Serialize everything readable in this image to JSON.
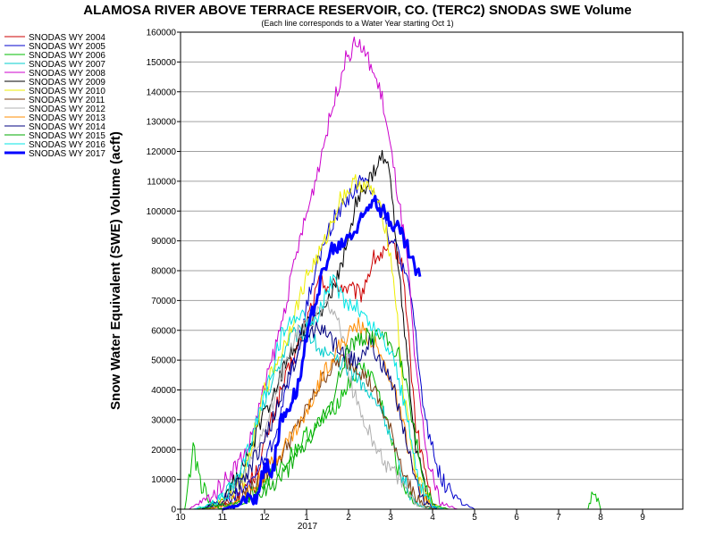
{
  "chart_data": {
    "type": "line",
    "title": "ALAMOSA RIVER ABOVE TERRACE RESERVOIR, CO. (TERC2) SNODAS SWE Volume",
    "subtitle": "(Each line corresponds to a Water Year starting Oct 1)",
    "ylabel": "Snow Water Equivalent (SWE) Volume (acft)",
    "xlabel": "",
    "x_tick_labels": [
      "10",
      "11",
      "12",
      "1",
      "2",
      "3",
      "4",
      "5",
      "6",
      "7",
      "8",
      "9"
    ],
    "x_year_label": "2017",
    "x_range_months": [
      0,
      12
    ],
    "ylim": [
      0,
      160000
    ],
    "y_ticks": [
      0,
      10000,
      20000,
      30000,
      40000,
      50000,
      60000,
      70000,
      80000,
      90000,
      100000,
      110000,
      120000,
      130000,
      140000,
      150000,
      160000
    ],
    "grid": true,
    "legend_position": "left",
    "series": [
      {
        "name": "SNODAS WY 2004",
        "color": "#cc0000",
        "width": 1,
        "x": [
          0.6,
          1.2,
          1.8,
          2.3,
          2.8,
          3.3,
          3.8,
          4.3,
          4.6,
          4.9,
          5.1,
          5.3,
          5.6,
          6.0,
          6.3
        ],
        "y": [
          0,
          3000,
          12000,
          36000,
          55000,
          76000,
          75000,
          72000,
          84000,
          86000,
          88000,
          80000,
          28000,
          1000,
          0
        ]
      },
      {
        "name": "SNODAS WY 2005",
        "color": "#0000cc",
        "width": 1,
        "x": [
          0.4,
          1.0,
          1.6,
          2.2,
          2.8,
          3.2,
          3.6,
          4.0,
          4.3,
          4.6,
          4.8,
          5.0,
          5.2,
          5.5,
          5.8,
          6.2,
          6.7,
          7.0
        ],
        "y": [
          0,
          2000,
          7000,
          22000,
          55000,
          80000,
          96000,
          105000,
          110000,
          108000,
          100000,
          90000,
          86000,
          70000,
          32000,
          10000,
          2000,
          0
        ]
      },
      {
        "name": "SNODAS WY 2006",
        "color": "#00bb00",
        "width": 1,
        "x": [
          0.1,
          0.3,
          0.5,
          0.7,
          1.0,
          1.5,
          2.0,
          2.5,
          3.0,
          3.4,
          3.7,
          4.0,
          4.3,
          4.6,
          4.9,
          5.2,
          5.5,
          5.8,
          6.0,
          9.7,
          9.85,
          10.0
        ],
        "y": [
          0,
          20000,
          8000,
          2000,
          0,
          3000,
          9000,
          16000,
          25000,
          30000,
          35000,
          42000,
          48000,
          44000,
          30000,
          12000,
          3000,
          500,
          0,
          0,
          7000,
          0
        ]
      },
      {
        "name": "SNODAS WY 2007",
        "color": "#00cccc",
        "width": 1,
        "x": [
          0.5,
          1.0,
          1.5,
          2.0,
          2.6,
          3.0,
          3.3,
          3.6,
          3.9,
          4.2,
          4.5,
          4.8,
          5.0,
          5.3,
          5.6,
          6.0,
          6.3
        ],
        "y": [
          0,
          4000,
          12000,
          36000,
          58000,
          60000,
          54000,
          50000,
          48000,
          45000,
          38000,
          34000,
          24000,
          10000,
          2000,
          300,
          0
        ]
      },
      {
        "name": "SNODAS WY 2008",
        "color": "#cc00cc",
        "width": 1,
        "x": [
          0.2,
          0.8,
          1.6,
          2.1,
          2.4,
          2.8,
          3.1,
          3.5,
          3.9,
          4.2,
          4.5,
          4.8,
          5.1,
          5.4,
          5.6,
          5.9,
          6.2,
          6.6
        ],
        "y": [
          0,
          5000,
          20000,
          46000,
          62000,
          88000,
          104000,
          128000,
          150000,
          157000,
          150000,
          138000,
          112000,
          84000,
          46000,
          15000,
          2000,
          0
        ]
      },
      {
        "name": "SNODAS WY 2009",
        "color": "#000000",
        "width": 1,
        "x": [
          0.5,
          1.0,
          1.5,
          2.0,
          2.6,
          3.0,
          3.4,
          3.8,
          4.2,
          4.5,
          4.8,
          5.0,
          5.3,
          5.6,
          5.9,
          6.2
        ],
        "y": [
          0,
          3000,
          14000,
          32000,
          52000,
          62000,
          66000,
          80000,
          104000,
          110000,
          118000,
          112000,
          64000,
          20000,
          3000,
          0
        ]
      },
      {
        "name": "SNODAS WY 2010",
        "color": "#eeee00",
        "width": 1,
        "x": [
          0.6,
          1.0,
          1.5,
          2.0,
          2.5,
          3.0,
          3.4,
          3.8,
          4.2,
          4.6,
          4.9,
          5.1,
          5.3,
          5.6,
          6.0,
          6.3
        ],
        "y": [
          0,
          3000,
          10000,
          40000,
          56000,
          78000,
          88000,
          104000,
          110000,
          106000,
          94000,
          74000,
          40000,
          12000,
          1500,
          0
        ]
      },
      {
        "name": "SNODAS WY 2011",
        "color": "#7a3b10",
        "width": 1,
        "x": [
          0.6,
          1.2,
          1.8,
          2.4,
          3.0,
          3.4,
          3.8,
          4.2,
          4.6,
          5.0,
          5.4,
          5.8,
          6.1
        ],
        "y": [
          0,
          2000,
          8000,
          18000,
          33000,
          44000,
          50000,
          48000,
          40000,
          26000,
          9000,
          1000,
          0
        ]
      },
      {
        "name": "SNODAS WY 2012",
        "color": "#b0b0b0",
        "width": 1,
        "x": [
          0.4,
          1.0,
          1.6,
          2.2,
          2.8,
          3.2,
          3.5,
          3.8,
          4.1,
          4.4,
          4.7,
          5.0,
          5.3,
          5.6,
          5.9
        ],
        "y": [
          0,
          2000,
          12000,
          36000,
          60000,
          64000,
          70000,
          62000,
          40000,
          28000,
          20000,
          13000,
          8000,
          2000,
          0
        ]
      },
      {
        "name": "SNODAS WY 2013",
        "color": "#ff8c00",
        "width": 1,
        "x": [
          0.6,
          1.2,
          1.8,
          2.4,
          3.0,
          3.4,
          3.8,
          4.2,
          4.6,
          5.0,
          5.3,
          5.6,
          5.9,
          6.2
        ],
        "y": [
          0,
          1500,
          8000,
          20000,
          32000,
          46000,
          55000,
          62000,
          56000,
          44000,
          28000,
          10000,
          2000,
          0
        ]
      },
      {
        "name": "SNODAS WY 2014",
        "color": "#000080",
        "width": 1,
        "x": [
          0.5,
          1.0,
          1.6,
          2.2,
          2.6,
          3.0,
          3.3,
          3.6,
          3.9,
          4.2,
          4.5,
          4.8,
          5.1,
          5.4,
          5.7,
          6.1
        ],
        "y": [
          0,
          3000,
          12000,
          30000,
          46000,
          58000,
          62000,
          56000,
          52000,
          50000,
          56000,
          48000,
          40000,
          22000,
          4000,
          0
        ]
      },
      {
        "name": "SNODAS WY 2015",
        "color": "#00aa00",
        "width": 1,
        "x": [
          0.3,
          0.8,
          1.4,
          2.0,
          2.6,
          3.2,
          3.6,
          4.0,
          4.4,
          4.8,
          5.2,
          5.5,
          5.8,
          6.1,
          6.4
        ],
        "y": [
          0,
          1000,
          2000,
          6000,
          14000,
          26000,
          35000,
          55000,
          58000,
          58000,
          52000,
          32000,
          8000,
          1000,
          0
        ]
      },
      {
        "name": "SNODAS WY 2016",
        "color": "#00e5e5",
        "width": 1,
        "x": [
          0.3,
          0.8,
          1.4,
          2.0,
          2.4,
          2.8,
          3.2,
          3.6,
          3.9,
          4.2,
          4.5,
          4.8,
          5.1,
          5.4,
          5.7,
          6.0,
          6.3
        ],
        "y": [
          0,
          2000,
          10000,
          38000,
          58000,
          66000,
          62000,
          77000,
          70000,
          68000,
          62000,
          58000,
          50000,
          30000,
          8000,
          1000,
          0
        ]
      },
      {
        "name": "SNODAS WY 2017",
        "color": "#0000ff",
        "width": 3,
        "x": [
          1.0,
          1.3,
          1.6,
          1.8,
          2.0,
          2.2,
          2.4,
          2.6,
          2.8,
          3.0,
          3.2,
          3.4,
          3.6,
          3.8,
          4.0,
          4.2,
          4.4,
          4.6,
          4.8,
          5.0,
          5.2,
          5.4,
          5.6,
          5.7
        ],
        "y": [
          0,
          1000,
          4000,
          3000,
          14000,
          13000,
          30000,
          36000,
          42000,
          57000,
          70000,
          80000,
          87000,
          88000,
          92000,
          94000,
          100000,
          106000,
          100000,
          97000,
          94000,
          88000,
          80000,
          78000
        ]
      }
    ]
  }
}
